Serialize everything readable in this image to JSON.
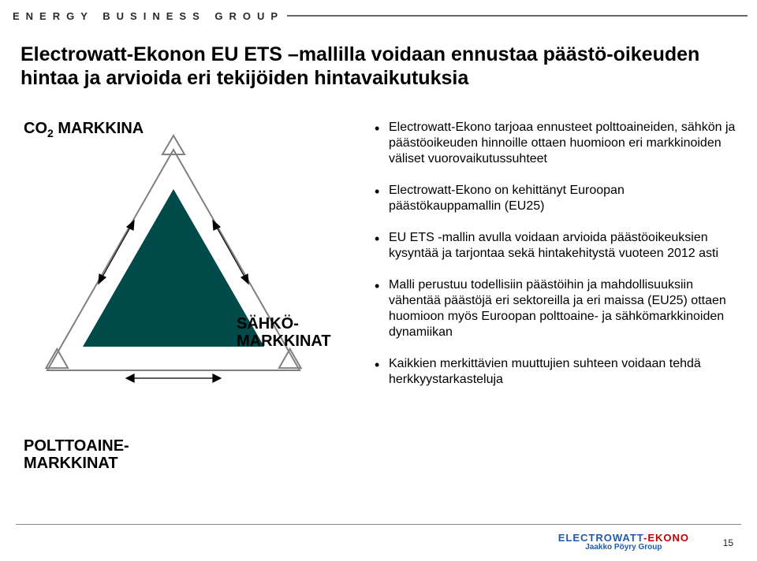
{
  "header": {
    "brand": "ENERGY BUSINESS GROUP"
  },
  "title": "Electrowatt-Ekonon EU ETS –mallilla voidaan ennustaa päästö-oikeuden hintaa ja arvioida eri tekijöiden hintavaikutuksia",
  "diagram": {
    "label_top_html": "CO<sub>2</sub> MARKKINA",
    "label_bottom_left": "POLTTOAINE-\nMARKKINAT",
    "label_bottom_right": "SÄHKÖ-\nMARKKINAT",
    "triangle_fill": "#004a4a",
    "outline_stroke": "#808080",
    "outline_width": 2,
    "arrow_color": "#000000"
  },
  "bullets": [
    "Electrowatt-Ekono tarjoaa ennusteet polttoaineiden, sähkön ja päästöoikeuden hinnoille ottaen huomioon eri markkinoiden väliset vuorovaikutussuhteet",
    "Electrowatt-Ekono on kehittänyt Euroopan päästökauppamallin (EU25)",
    "EU ETS -mallin avulla voidaan arvioida päästöoikeuksien kysyntää ja tarjontaa sekä hintakehitystä vuoteen 2012 asti",
    "Malli perustuu todellisiin päästöihin ja mahdollisuuksiin vähentää päästöjä eri sektoreilla ja eri maissa (EU25) ottaen huomioon myös Euroopan polttoaine- ja sähkömarkkinoiden dynamiikan",
    "Kaikkien merkittävien muuttujien suhteen voidaan tehdä herkkyystarkasteluja"
  ],
  "footer": {
    "logo_line1_blue": "ELECTROWATT",
    "logo_line1_red": "-EKONO",
    "logo_line2": "Jaakko Pöyry Group",
    "page": "15"
  },
  "colors": {
    "text": "#000000",
    "header_text": "#2a2a2a",
    "line": "#666666",
    "logo_blue": "#1e5aa8",
    "logo_red": "#c00000"
  }
}
